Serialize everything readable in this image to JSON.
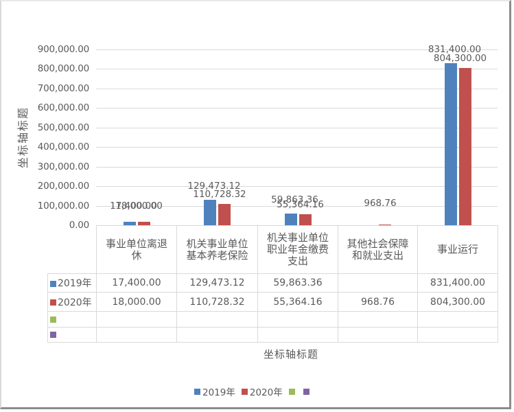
{
  "chart_data": {
    "type": "bar",
    "title": "",
    "xlabel": "坐标轴标题",
    "ylabel": "坐标轴标题",
    "ylim": [
      0,
      900000
    ],
    "yticks": [
      "900,000.00",
      "800,000.00",
      "700,000.00",
      "600,000.00",
      "500,000.00",
      "400,000.00",
      "300,000.00",
      "200,000.00",
      "100,000.00",
      "0.00"
    ],
    "grid": true,
    "legend_position": "bottom",
    "categories": [
      "事业单位离退休",
      "机关事业单位基本养老保险",
      "机关事业单位职业年金缴费支出",
      "其他社会保障和就业支出",
      "事业运行"
    ],
    "category_labels_display": [
      [
        "事业单位离退",
        "休"
      ],
      [
        "机关事业单位",
        "基本养老保险"
      ],
      [
        "机关事业单位",
        "职业年金缴费",
        "支出"
      ],
      [
        "其他社会保障",
        "和就业支出"
      ],
      [
        "事业运行"
      ]
    ],
    "series": [
      {
        "name": "2019年",
        "color": "#4f81bd",
        "values": [
          17400.0,
          129473.12,
          59863.36,
          null,
          831400.0
        ],
        "labels": [
          "17,400.00",
          "129,473.12",
          "59,863.36",
          "",
          "831,400.00"
        ]
      },
      {
        "name": "2020年",
        "color": "#c0504d",
        "values": [
          18000.0,
          110728.32,
          55364.16,
          968.76,
          804300.0
        ],
        "labels": [
          "18,000.00",
          "110,728.32",
          "55,364.16",
          "968.76",
          "804,300.00"
        ]
      },
      {
        "name": "",
        "color": "#9bbb59",
        "values": [
          null,
          null,
          null,
          null,
          null
        ],
        "labels": [
          "",
          "",
          "",
          "",
          ""
        ]
      },
      {
        "name": "",
        "color": "#8064a2",
        "values": [
          null,
          null,
          null,
          null,
          null
        ],
        "labels": [
          "",
          "",
          "",
          "",
          ""
        ]
      }
    ],
    "data_table": true
  }
}
